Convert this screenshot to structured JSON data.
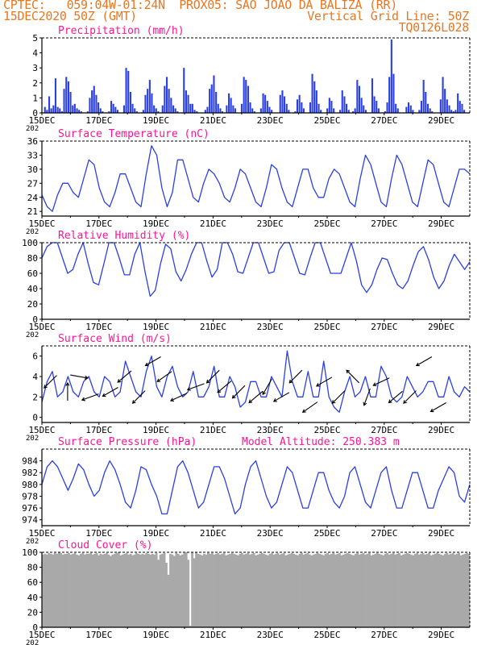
{
  "header": {
    "line1_left": "CPTEC:   059:04W-01:24N  PROX05: SAO JOAO DA BALIZA (RR)",
    "line2_left": "15DEC2020 50Z (GMT)",
    "line2_right": "Vertical Grid Line: 50Z",
    "line3_right": "TQ0126L028",
    "model_altitude": "Model Altitude: 250.383 m"
  },
  "colors": {
    "header": "#e87722",
    "title": "#ff1493",
    "series": "#2b3fe6",
    "cloud": "#a9a9a9"
  },
  "x_axis": {
    "ticks": [
      "15DEC",
      "17DEC",
      "19DEC",
      "21DEC",
      "23DEC",
      "25DEC",
      "27DEC",
      "29DEC"
    ],
    "year_stub": "202"
  },
  "chart_data": [
    {
      "type": "bar",
      "title": "Precipitation (mm/h)",
      "ylim": [
        0,
        5
      ],
      "yticks": [
        "0",
        "1",
        "2",
        "3",
        "4",
        "5"
      ],
      "x_start": "15DEC2020",
      "x_end": "30DEC2020",
      "step_hours": 3,
      "values": [
        0,
        0.4,
        0.2,
        1.1,
        0.3,
        0.5,
        2.3,
        0.4,
        0.3,
        0.1,
        1.6,
        2.4,
        2.1,
        1.4,
        0.5,
        0.6,
        0.3,
        0.2,
        0.1,
        0,
        0,
        0.1,
        1.0,
        1.5,
        1.8,
        1.2,
        0.7,
        0.3,
        0.1,
        0,
        0,
        0.1,
        0.8,
        0.6,
        0.4,
        0.2,
        0,
        0,
        0.5,
        3.0,
        2.8,
        1.4,
        0.6,
        0.3,
        0.1,
        0,
        0,
        0.2,
        1.2,
        1.6,
        2.2,
        1.3,
        0.5,
        0.3,
        0.1,
        0,
        0.5,
        1.8,
        2.4,
        1.6,
        1.0,
        0.5,
        0.3,
        0.1,
        0,
        0,
        3.0,
        1.5,
        1.2,
        0.6,
        0.6,
        0.2,
        0.1,
        0,
        0,
        0,
        0.2,
        0.4,
        1.6,
        1.9,
        2.5,
        1.4,
        0.6,
        0.3,
        0.1,
        0,
        0.5,
        1.3,
        1.0,
        0.5,
        0.3,
        0,
        0,
        0.6,
        2.4,
        2.2,
        1.8,
        0.7,
        0.3,
        0.1,
        0,
        0,
        0.3,
        1.3,
        1.2,
        0.8,
        0.4,
        0.2,
        0,
        0,
        0,
        1.2,
        1.5,
        1.1,
        0.6,
        0.2,
        0,
        0,
        0.1,
        0.9,
        1.2,
        0.7,
        0.3,
        0,
        0,
        0.7,
        2.6,
        2.1,
        1.5,
        0.6,
        0.2,
        0,
        0,
        0.3,
        1.0,
        0.8,
        0.3,
        0,
        0,
        0.2,
        1.5,
        1.1,
        0.6,
        0.2,
        0,
        0.1,
        0.3,
        2.2,
        1.8,
        1.0,
        0.5,
        0.2,
        0,
        0,
        2.3,
        1.1,
        0.8,
        0.3,
        0,
        0,
        0.1,
        0.7,
        2.4,
        4.9,
        2.6,
        0.6,
        0.3,
        0,
        0,
        0,
        0.4,
        0.7,
        0.5,
        0.2,
        0,
        0,
        0.2,
        0.8,
        2.2,
        1.4,
        0.6,
        0.3,
        0.1,
        0,
        0,
        0,
        0.9,
        2.4,
        1.6,
        0.9,
        0.5,
        0.2,
        0.1,
        0.2,
        1.3,
        0.8,
        0.6,
        0.2,
        0,
        0
      ]
    },
    {
      "type": "line",
      "title": "Surface Temperature (nC)",
      "ylim": [
        20,
        36
      ],
      "yticks": [
        "21",
        "24",
        "27",
        "30",
        "33",
        "36"
      ],
      "x_start": "15DEC2020",
      "x_end": "30DEC2020",
      "step_hours": 6,
      "values": [
        24.5,
        22,
        21,
        24.5,
        27,
        27,
        25,
        24,
        28,
        32,
        31,
        26,
        23,
        22,
        25,
        29,
        29,
        26,
        23,
        22,
        29,
        35,
        33,
        26,
        22,
        25,
        32,
        32,
        28,
        24,
        23,
        27,
        30,
        29,
        27,
        24,
        23,
        26,
        30,
        29,
        26,
        23,
        22,
        26,
        31,
        30,
        26,
        23,
        22,
        26,
        30,
        30,
        26,
        24,
        24,
        28,
        30,
        29,
        26,
        23,
        22,
        28,
        33,
        31,
        27,
        23,
        22,
        28,
        33,
        31,
        27,
        23,
        22,
        27,
        32,
        31,
        27,
        23,
        22,
        26,
        30,
        30,
        29
      ]
    },
    {
      "type": "line",
      "title": "Relative Humidity (%)",
      "ylim": [
        0,
        100
      ],
      "yticks": [
        "0",
        "20",
        "40",
        "60",
        "80",
        "100"
      ],
      "x_start": "15DEC2020",
      "x_end": "30DEC2020",
      "step_hours": 6,
      "values": [
        80,
        95,
        100,
        100,
        80,
        60,
        65,
        85,
        100,
        72,
        48,
        45,
        72,
        100,
        100,
        80,
        58,
        58,
        85,
        100,
        62,
        30,
        38,
        72,
        98,
        92,
        62,
        50,
        65,
        85,
        100,
        100,
        76,
        55,
        65,
        100,
        100,
        85,
        62,
        60,
        80,
        100,
        100,
        80,
        60,
        62,
        90,
        100,
        100,
        80,
        60,
        58,
        80,
        100,
        100,
        80,
        60,
        60,
        60,
        80,
        100,
        76,
        45,
        35,
        45,
        65,
        80,
        78,
        60,
        45,
        40,
        50,
        70,
        88,
        95,
        78,
        55,
        40,
        50,
        70,
        85,
        75,
        65,
        75
      ]
    },
    {
      "type": "line",
      "title": "Surface Wind (m/s)",
      "ylim": [
        -0.5,
        7
      ],
      "yticks": [
        "0",
        "2",
        "4",
        "6"
      ],
      "x_start": "15DEC2020",
      "x_end": "30DEC2020",
      "step_hours": 6,
      "values": [
        1.5,
        3.5,
        4.5,
        2,
        2.5,
        4,
        2.5,
        2,
        3.5,
        4,
        2.5,
        2,
        4,
        3.5,
        2,
        2.5,
        5.5,
        4,
        2.5,
        2,
        4.5,
        6,
        3,
        2,
        4,
        5,
        3,
        2,
        2.5,
        4.5,
        2,
        2,
        3,
        5,
        2,
        2,
        4,
        3,
        1,
        1.5,
        3.5,
        3.5,
        2,
        2,
        4,
        3,
        2,
        6.5,
        3.5,
        2,
        2,
        4.5,
        2,
        2,
        5.5,
        2,
        1,
        0.5,
        2.5,
        4,
        2,
        2.5,
        4,
        2,
        2,
        5,
        4,
        2,
        1.5,
        2,
        4,
        3,
        2,
        2.5,
        3.5,
        3.5,
        2,
        2,
        4,
        2.5,
        2,
        3,
        2.5
      ]
    },
    {
      "type": "line",
      "title": "Surface Pressure (hPa)",
      "ylim": [
        973,
        986
      ],
      "yticks": [
        "974",
        "976",
        "978",
        "980",
        "982",
        "984"
      ],
      "x_start": "15DEC2020",
      "x_end": "30DEC2020",
      "step_hours": 6,
      "values": [
        980,
        983,
        984,
        983,
        981,
        979,
        981,
        983.5,
        982.5,
        980,
        978,
        979,
        982,
        984,
        982.5,
        980,
        977,
        976,
        979,
        983,
        982.5,
        980,
        978,
        975,
        975,
        979,
        983,
        984,
        982,
        979,
        976,
        977,
        980,
        983,
        983,
        981,
        978,
        975,
        976,
        980,
        983,
        984,
        981,
        978,
        976,
        977,
        980,
        983,
        982,
        979,
        976,
        976,
        979,
        982,
        982,
        979,
        977,
        976,
        978,
        982,
        983,
        980,
        977,
        976,
        979,
        982,
        983,
        979,
        976,
        976,
        979,
        982,
        982,
        979,
        976,
        976,
        979,
        981,
        983,
        982,
        978,
        977,
        980
      ]
    },
    {
      "type": "area",
      "title": "Cloud Cover (%)",
      "ylim": [
        0,
        100
      ],
      "yticks": [
        "0",
        "20",
        "40",
        "60",
        "80",
        "100"
      ],
      "x_start": "15DEC2020",
      "x_end": "30DEC2020",
      "step_hours": 3,
      "values": [
        97,
        98,
        97,
        99,
        98,
        97,
        99,
        98,
        100,
        99,
        97,
        98,
        98,
        99,
        97,
        98,
        99,
        97,
        96,
        98,
        99,
        97,
        98,
        98,
        99,
        97,
        98,
        99,
        96,
        98,
        97,
        98,
        99,
        97,
        95,
        97,
        98,
        99,
        100,
        96,
        97,
        98,
        99,
        97,
        98,
        96,
        97,
        99,
        98,
        97,
        98,
        97,
        99,
        98,
        97,
        98,
        97,
        99,
        90,
        97,
        98,
        99,
        86,
        70,
        98,
        97,
        95,
        99,
        98,
        96,
        97,
        99,
        100,
        90,
        2,
        100,
        92,
        100,
        98,
        97,
        96,
        98,
        97,
        99,
        98,
        99,
        97,
        98,
        99,
        97,
        98,
        99,
        96,
        97,
        98,
        99,
        98,
        97,
        96,
        98,
        99,
        97,
        98,
        99,
        97,
        98,
        99,
        96,
        97,
        98,
        99,
        98,
        97,
        96,
        98,
        99,
        97,
        98,
        99,
        97,
        98,
        99,
        96,
        97,
        98,
        99,
        98,
        97,
        96,
        98,
        99,
        97,
        98,
        99,
        97,
        96,
        97,
        98,
        99,
        98,
        97,
        96,
        98,
        99,
        97,
        98,
        99,
        97,
        98,
        99,
        96,
        97,
        98,
        99,
        98,
        97,
        96,
        98,
        99,
        97,
        98,
        99,
        97,
        98,
        99,
        96,
        97,
        98,
        99,
        98,
        97,
        96,
        98,
        99,
        97,
        98,
        99,
        97,
        98,
        99,
        96,
        97,
        98,
        99,
        98,
        97,
        96,
        98,
        99,
        97,
        98,
        99,
        97,
        98,
        99,
        96,
        97,
        98,
        99,
        98,
        97,
        96,
        98,
        99,
        97,
        98,
        99,
        97,
        98,
        99,
        96,
        97,
        98,
        99,
        98
      ]
    }
  ],
  "wind_arrows": [
    {
      "day": 0.3,
      "dir": 225
    },
    {
      "day": 0.9,
      "dir": 0
    },
    {
      "day": 1.3,
      "dir": 100
    },
    {
      "day": 1.7,
      "dir": 250
    },
    {
      "day": 2.4,
      "dir": 240
    },
    {
      "day": 2.9,
      "dir": 230
    },
    {
      "day": 3.4,
      "dir": 225
    },
    {
      "day": 3.9,
      "dir": 240
    },
    {
      "day": 4.3,
      "dir": 235
    },
    {
      "day": 4.8,
      "dir": 245
    },
    {
      "day": 5.4,
      "dir": 250
    },
    {
      "day": 6.0,
      "dir": 225
    },
    {
      "day": 6.4,
      "dir": 230
    },
    {
      "day": 6.9,
      "dir": 225
    },
    {
      "day": 7.5,
      "dir": 230
    },
    {
      "day": 7.9,
      "dir": 210
    },
    {
      "day": 8.4,
      "dir": 240
    },
    {
      "day": 8.9,
      "dir": 225
    },
    {
      "day": 9.4,
      "dir": 235
    },
    {
      "day": 9.9,
      "dir": 240
    },
    {
      "day": 10.4,
      "dir": 225
    },
    {
      "day": 10.9,
      "dir": 315
    },
    {
      "day": 11.4,
      "dir": 200
    },
    {
      "day": 11.9,
      "dir": 245
    },
    {
      "day": 12.4,
      "dir": 230
    },
    {
      "day": 12.9,
      "dir": 225
    },
    {
      "day": 13.4,
      "dir": 240
    },
    {
      "day": 13.9,
      "dir": 240
    }
  ]
}
